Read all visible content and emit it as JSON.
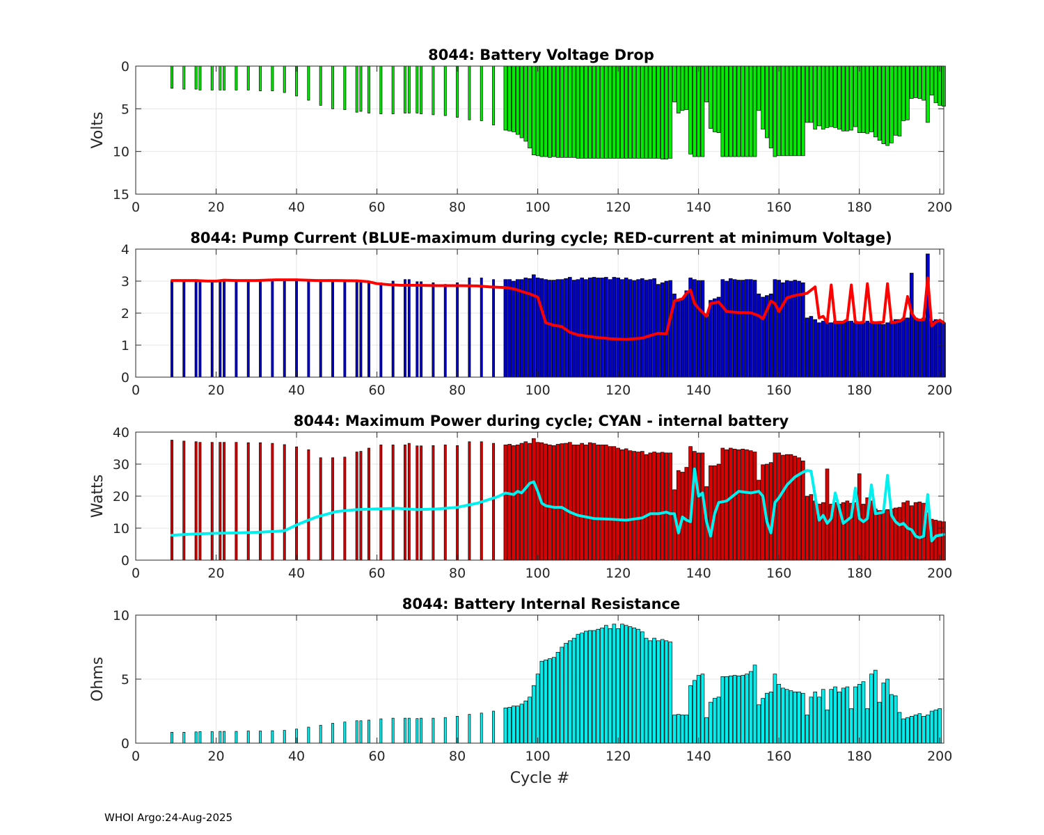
{
  "footer": "WHOI Argo:24-Aug-2025",
  "colors": {
    "voltage_bar": "#00ee00",
    "current_bar": "#0000cc",
    "current_line": "#ff0000",
    "power_bar": "#dd0000",
    "power_line": "#00f0f0",
    "resistance_bar": "#00f0f0",
    "grid": "#e6e6e6",
    "axis": "#262626",
    "edge": "#000000"
  },
  "chart_data": [
    {
      "id": "voltage",
      "type": "bar",
      "title": "8044: Battery Voltage Drop",
      "xlabel": "",
      "ylabel": "Volts",
      "xlim": [
        0,
        201
      ],
      "ylim": [
        0,
        15
      ],
      "y_reversed": true,
      "xticks": [
        0,
        20,
        40,
        60,
        80,
        100,
        120,
        140,
        160,
        180,
        200
      ],
      "yticks": [
        0,
        5,
        10,
        15
      ],
      "grid": true,
      "bar_color": "voltage_bar",
      "sparse_cycles": [
        9,
        12,
        15,
        16,
        19,
        21,
        22,
        25,
        28,
        31,
        34,
        37,
        40,
        43,
        46,
        49,
        52,
        55,
        56,
        58,
        61,
        64,
        67,
        68,
        70,
        71,
        74,
        77,
        80,
        83,
        86,
        89
      ],
      "sparse_values": [
        2.6,
        2.7,
        2.7,
        2.8,
        2.8,
        2.8,
        2.8,
        2.8,
        2.8,
        2.9,
        2.9,
        3.1,
        3.5,
        4.0,
        4.6,
        5.0,
        5.1,
        5.4,
        5.3,
        5.5,
        5.6,
        5.6,
        5.5,
        5.5,
        5.5,
        5.6,
        5.7,
        5.8,
        6.0,
        6.3,
        6.4,
        6.9
      ],
      "dense_start": 92,
      "dense_values": [
        7.5,
        7.6,
        7.7,
        8.0,
        8.4,
        8.8,
        9.6,
        10.4,
        10.5,
        10.6,
        10.6,
        10.7,
        10.6,
        10.7,
        10.7,
        10.7,
        10.7,
        10.7,
        10.8,
        10.8,
        10.8,
        10.8,
        10.8,
        10.8,
        10.8,
        10.8,
        10.8,
        10.8,
        10.8,
        10.8,
        10.8,
        10.8,
        10.8,
        10.8,
        10.8,
        10.8,
        10.8,
        10.8,
        10.8,
        10.9,
        10.9,
        10.8,
        4.2,
        5.5,
        5.2,
        5.1,
        10.3,
        10.6,
        10.6,
        10.6,
        4.2,
        7.3,
        7.7,
        7.8,
        10.6,
        10.6,
        10.6,
        10.6,
        10.6,
        10.6,
        10.6,
        10.6,
        10.6,
        5.2,
        7.4,
        8.4,
        9.6,
        10.6,
        10.5,
        10.5,
        10.5,
        10.5,
        10.5,
        10.5,
        10.5,
        6.6,
        6.6,
        7.4,
        7.0,
        7.4,
        7.2,
        7.1,
        7.2,
        7.4,
        7.6,
        7.6,
        7.5,
        7.1,
        7.8,
        7.8,
        7.9,
        7.7,
        8.3,
        8.7,
        9.1,
        9.3,
        9.0,
        8.1,
        8.2,
        6.4,
        6.3,
        3.8,
        3.7,
        3.8,
        4.0,
        6.6,
        3.4,
        4.3,
        4.6,
        4.7
      ]
    },
    {
      "id": "current",
      "type": "bar",
      "title": "8044: Pump Current (BLUE-maximum during cycle; RED-current at minimum Voltage)",
      "xlabel": "",
      "ylabel": "",
      "xlim": [
        0,
        201
      ],
      "ylim": [
        0,
        4
      ],
      "y_reversed": false,
      "xticks": [
        0,
        20,
        40,
        60,
        80,
        100,
        120,
        140,
        160,
        180,
        200
      ],
      "yticks": [
        0,
        1,
        2,
        3,
        4
      ],
      "grid": true,
      "bar_color": "current_bar",
      "line_color": "current_line",
      "sparse_cycles": [
        9,
        12,
        15,
        16,
        19,
        21,
        22,
        25,
        28,
        31,
        34,
        37,
        40,
        43,
        46,
        49,
        52,
        55,
        56,
        58,
        61,
        64,
        67,
        68,
        70,
        71,
        74,
        77,
        80,
        83,
        86,
        89
      ],
      "sparse_values": [
        3.02,
        3.02,
        3.02,
        3.0,
        3.0,
        3.03,
        3.03,
        3.0,
        3.0,
        3.05,
        3.05,
        3.02,
        3.05,
        3.0,
        3.02,
        3.03,
        3.0,
        3.0,
        3.0,
        3.0,
        2.95,
        3.0,
        3.05,
        3.05,
        2.98,
        2.98,
        2.95,
        2.9,
        2.95,
        3.1,
        3.1,
        3.05
      ],
      "dense_start": 92,
      "dense_values": [
        3.05,
        3.05,
        3.0,
        3.05,
        3.05,
        3.1,
        3.08,
        3.2,
        3.1,
        3.08,
        3.05,
        3.03,
        3.03,
        3.05,
        3.05,
        3.08,
        3.12,
        3.03,
        3.05,
        3.1,
        3.05,
        3.1,
        3.12,
        3.1,
        3.1,
        3.12,
        3.05,
        3.12,
        3.1,
        3.05,
        3.1,
        3.05,
        3.02,
        3.05,
        3.08,
        3.03,
        3.05,
        3.08,
        2.9,
        2.95,
        3.0,
        3.02,
        2.6,
        2.4,
        2.45,
        2.7,
        3.1,
        3.05,
        3.02,
        3.02,
        1.9,
        2.4,
        2.45,
        2.5,
        3.05,
        3.0,
        3.08,
        3.05,
        3.03,
        3.03,
        3.05,
        3.05,
        3.03,
        2.6,
        2.5,
        2.55,
        2.6,
        3.05,
        3.03,
        2.95,
        3.02,
        3.0,
        3.03,
        3.0,
        2.95,
        1.85,
        1.9,
        1.8,
        1.7,
        1.75,
        1.7,
        1.7,
        1.75,
        1.75,
        1.7,
        1.75,
        1.75,
        1.7,
        1.7,
        1.7,
        1.75,
        1.7,
        1.7,
        1.7,
        1.65,
        1.7,
        1.75,
        1.8,
        1.8,
        1.85,
        1.85,
        3.25,
        1.85,
        1.8,
        1.85,
        3.85,
        1.75,
        1.8,
        1.75,
        1.7
      ],
      "line_x": [
        9,
        12,
        15,
        18,
        20,
        22,
        25,
        30,
        35,
        40,
        45,
        50,
        55,
        58,
        60,
        63,
        66,
        70,
        75,
        80,
        85,
        88,
        90,
        92,
        94,
        96,
        98,
        100,
        102,
        104,
        106,
        108,
        110,
        114,
        118,
        122,
        126,
        128,
        130,
        132,
        134,
        136,
        137,
        138,
        139,
        140,
        142,
        143,
        145,
        147,
        150,
        153,
        155,
        156,
        158,
        159,
        160,
        162,
        164,
        167,
        169,
        170,
        171,
        172,
        173,
        174,
        176,
        177,
        178,
        179,
        180,
        181,
        182,
        183,
        184,
        186,
        187,
        188,
        189,
        190,
        191,
        192,
        193,
        194,
        195,
        196,
        197,
        198,
        199,
        200,
        201
      ],
      "line_y": [
        3.02,
        3.02,
        3.02,
        3.0,
        3.0,
        3.03,
        3.02,
        3.02,
        3.04,
        3.04,
        3.02,
        3.02,
        3.01,
        2.98,
        2.92,
        2.89,
        2.87,
        2.87,
        2.86,
        2.86,
        2.85,
        2.82,
        2.81,
        2.8,
        2.76,
        2.68,
        2.6,
        2.5,
        1.7,
        1.62,
        1.58,
        1.4,
        1.32,
        1.25,
        1.2,
        1.18,
        1.22,
        1.3,
        1.37,
        1.35,
        2.38,
        2.45,
        2.62,
        2.72,
        2.3,
        2.15,
        1.9,
        2.3,
        2.35,
        2.05,
        2.02,
        2.01,
        1.92,
        1.82,
        2.38,
        2.3,
        2.05,
        2.48,
        2.55,
        2.62,
        2.82,
        1.85,
        1.9,
        1.7,
        2.88,
        1.7,
        1.72,
        1.8,
        2.88,
        1.72,
        1.7,
        1.72,
        2.92,
        1.72,
        1.7,
        1.72,
        2.92,
        1.7,
        1.72,
        1.75,
        1.82,
        2.52,
        2.0,
        1.82,
        1.78,
        1.8,
        3.1,
        1.6,
        1.72,
        1.78,
        1.7
      ]
    },
    {
      "id": "power",
      "type": "bar",
      "title": "8044: Maximum Power during cycle; CYAN - internal battery",
      "xlabel": "",
      "ylabel": "Watts",
      "xlim": [
        0,
        201
      ],
      "ylim": [
        0,
        40
      ],
      "y_reversed": false,
      "xticks": [
        0,
        20,
        40,
        60,
        80,
        100,
        120,
        140,
        160,
        180,
        200
      ],
      "yticks": [
        0,
        10,
        20,
        30,
        40
      ],
      "grid": true,
      "bar_color": "power_bar",
      "line_color": "power_line",
      "sparse_cycles": [
        9,
        12,
        15,
        16,
        19,
        21,
        22,
        25,
        28,
        31,
        34,
        37,
        40,
        43,
        46,
        49,
        52,
        55,
        56,
        58,
        61,
        64,
        67,
        68,
        70,
        71,
        74,
        77,
        80,
        83,
        86,
        89
      ],
      "sparse_values": [
        37.5,
        37.2,
        37.0,
        36.8,
        36.8,
        36.8,
        36.8,
        36.8,
        36.7,
        36.7,
        36.5,
        36.1,
        35.4,
        34.5,
        32.0,
        32.0,
        32.2,
        33.8,
        34.0,
        35.0,
        36.0,
        36.0,
        36.0,
        36.5,
        35.7,
        35.7,
        35.8,
        36.0,
        35.8,
        37.0,
        37.0,
        36.5
      ],
      "dense_start": 92,
      "dense_values": [
        36.0,
        36.2,
        35.8,
        36.0,
        36.5,
        37.0,
        36.5,
        38.0,
        36.8,
        36.7,
        36.3,
        36.0,
        35.8,
        36.2,
        36.4,
        36.5,
        36.8,
        36.0,
        36.0,
        36.5,
        36.0,
        36.7,
        36.5,
        36.0,
        36.0,
        36.0,
        35.5,
        35.5,
        35.0,
        34.5,
        34.8,
        34.2,
        34.0,
        33.8,
        34.0,
        33.0,
        33.5,
        33.8,
        33.5,
        33.7,
        33.5,
        33.5,
        22.0,
        28.0,
        27.5,
        29.0,
        35.5,
        34.0,
        33.5,
        33.5,
        23.0,
        29.5,
        29.5,
        30.0,
        35.0,
        34.5,
        35.0,
        34.7,
        34.5,
        34.7,
        34.5,
        34.2,
        33.8,
        25.0,
        29.8,
        30.0,
        30.5,
        33.5,
        33.5,
        32.8,
        33.0,
        33.0,
        32.5,
        32.0,
        31.0,
        20.0,
        20.5,
        18.5,
        17.5,
        18.0,
        28.5,
        17.5,
        18.0,
        17.5,
        18.0,
        18.5,
        17.8,
        18.0,
        27.0,
        17.5,
        19.5,
        18.5,
        16.0,
        15.5,
        15.5,
        15.8,
        16.0,
        16.3,
        16.5,
        18.0,
        18.5,
        17.0,
        18.0,
        18.2,
        17.8,
        14.8,
        12.8,
        12.5,
        12.2,
        12.0
      ],
      "line_x": [
        9,
        15,
        20,
        25,
        30,
        35,
        37,
        40,
        45,
        50,
        55,
        60,
        65,
        70,
        75,
        80,
        85,
        90,
        92,
        94,
        95,
        96,
        97,
        98,
        99,
        100,
        101,
        102,
        104,
        106,
        108,
        110,
        114,
        118,
        122,
        126,
        128,
        130,
        132,
        133,
        134,
        135,
        136,
        137,
        138,
        139,
        140,
        141,
        142,
        143,
        144,
        145,
        147,
        150,
        153,
        155,
        156,
        157,
        158,
        159,
        160,
        162,
        164,
        166,
        167,
        168,
        169,
        170,
        171,
        172,
        173,
        174,
        176,
        177,
        178,
        179,
        180,
        181,
        182,
        183,
        184,
        186,
        187,
        188,
        189,
        190,
        191,
        192,
        193,
        194,
        195,
        196,
        197,
        198,
        199,
        200,
        201
      ],
      "line_y": [
        7.8,
        8.2,
        8.4,
        8.5,
        8.7,
        9.0,
        9.2,
        11.0,
        13.5,
        15.2,
        15.8,
        16.0,
        16.2,
        15.8,
        16.0,
        16.5,
        17.8,
        19.8,
        21.0,
        20.5,
        21.5,
        21.0,
        22.5,
        24.0,
        24.5,
        21.5,
        17.8,
        17.0,
        16.5,
        16.5,
        15.0,
        14.0,
        13.0,
        12.8,
        12.5,
        13.2,
        14.5,
        14.5,
        15.0,
        14.5,
        14.5,
        8.5,
        13.5,
        12.5,
        12.0,
        28.5,
        20.0,
        21.0,
        12.0,
        7.5,
        14.5,
        18.0,
        18.5,
        21.5,
        21.0,
        21.5,
        20.0,
        12.0,
        8.5,
        18.0,
        19.5,
        23.5,
        26.0,
        27.5,
        28.0,
        27.8,
        20.0,
        12.5,
        14.0,
        11.5,
        13.0,
        21.0,
        11.5,
        12.5,
        13.5,
        22.5,
        13.0,
        12.0,
        13.0,
        23.5,
        14.5,
        15.0,
        26.5,
        14.0,
        12.0,
        11.0,
        11.5,
        10.0,
        9.5,
        7.5,
        7.0,
        7.5,
        20.5,
        6.0,
        7.5,
        7.8,
        8.0
      ]
    },
    {
      "id": "resistance",
      "type": "bar",
      "title": "8044: Battery Internal Resistance",
      "xlabel": "Cycle #",
      "ylabel": "Ohms",
      "xlim": [
        0,
        201
      ],
      "ylim": [
        0,
        10
      ],
      "y_reversed": false,
      "xticks": [
        0,
        20,
        40,
        60,
        80,
        100,
        120,
        140,
        160,
        180,
        200
      ],
      "yticks": [
        0,
        5,
        10
      ],
      "grid": true,
      "bar_color": "resistance_bar",
      "sparse_cycles": [
        9,
        12,
        15,
        16,
        19,
        21,
        22,
        25,
        28,
        31,
        34,
        37,
        40,
        43,
        46,
        49,
        52,
        55,
        56,
        58,
        61,
        64,
        67,
        68,
        70,
        71,
        74,
        77,
        80,
        83,
        86,
        89
      ],
      "sparse_values": [
        0.85,
        0.85,
        0.88,
        0.9,
        0.9,
        0.92,
        0.92,
        0.92,
        0.95,
        0.95,
        0.97,
        1.0,
        1.1,
        1.25,
        1.4,
        1.55,
        1.65,
        1.75,
        1.75,
        1.8,
        1.9,
        1.95,
        1.95,
        1.95,
        1.92,
        1.95,
        1.95,
        2.0,
        2.1,
        2.25,
        2.35,
        2.5
      ],
      "dense_start": 92,
      "dense_values": [
        2.75,
        2.8,
        2.9,
        2.9,
        3.05,
        3.3,
        3.6,
        4.5,
        5.4,
        6.4,
        6.5,
        6.6,
        6.7,
        7.1,
        7.5,
        7.8,
        8.0,
        8.2,
        8.5,
        8.6,
        8.75,
        8.8,
        8.8,
        8.9,
        9.0,
        9.2,
        8.95,
        9.3,
        8.95,
        9.3,
        9.2,
        9.1,
        9.0,
        8.9,
        8.7,
        8.2,
        8.0,
        8.2,
        8.0,
        8.1,
        8.0,
        7.9,
        2.2,
        2.25,
        2.2,
        2.2,
        4.5,
        4.9,
        5.3,
        5.4,
        2.0,
        3.2,
        3.5,
        3.6,
        5.2,
        5.2,
        5.25,
        5.3,
        5.25,
        5.3,
        5.4,
        5.6,
        6.1,
        3.0,
        3.5,
        3.9,
        4.0,
        5.4,
        4.6,
        4.3,
        4.2,
        4.1,
        4.0,
        4.0,
        3.9,
        2.2,
        3.6,
        4.0,
        3.6,
        4.2,
        2.6,
        4.2,
        4.4,
        4.0,
        4.3,
        4.4,
        2.7,
        4.4,
        4.6,
        4.8,
        2.7,
        5.4,
        5.7,
        3.2,
        4.7,
        5.0,
        3.8,
        3.7,
        2.4,
        1.9,
        2.0,
        2.1,
        2.2,
        2.3,
        2.1,
        2.2,
        2.5,
        2.6,
        2.7
      ]
    }
  ]
}
